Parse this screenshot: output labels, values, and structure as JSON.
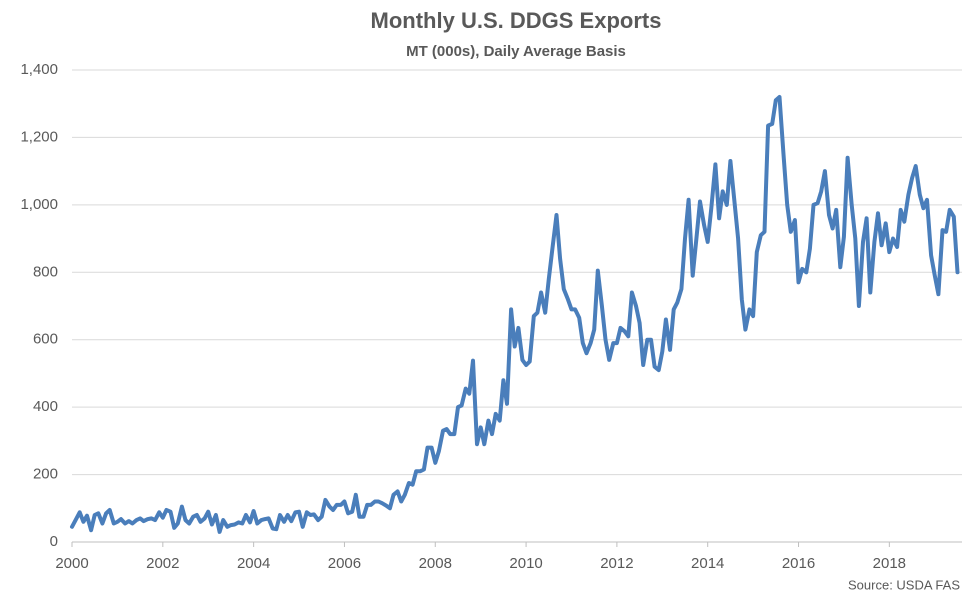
{
  "chart_data": {
    "type": "line",
    "title": "Monthly U.S. DDGS Exports",
    "subtitle": "MT (000s), Daily Average Basis",
    "source": "Source: USDA FAS",
    "color": "#4a7ebb",
    "grid": true,
    "xlim": [
      2000,
      2019.6
    ],
    "xticks": [
      2000,
      2002,
      2004,
      2006,
      2008,
      2010,
      2012,
      2014,
      2016,
      2018
    ],
    "ylim": [
      0,
      1400
    ],
    "yticks": [
      0,
      200,
      400,
      600,
      800,
      {
        "value": 1000,
        "label": "1,000"
      },
      {
        "value": 1200,
        "label": "1,200"
      },
      {
        "value": 1400,
        "label": "1,400"
      }
    ],
    "x": [
      2000,
      2000.08,
      2000.17,
      2000.25,
      2000.33,
      2000.42,
      2000.5,
      2000.58,
      2000.67,
      2000.75,
      2000.83,
      2000.92,
      2001,
      2001.08,
      2001.17,
      2001.25,
      2001.33,
      2001.42,
      2001.5,
      2001.58,
      2001.67,
      2001.75,
      2001.83,
      2001.92,
      2002,
      2002.08,
      2002.17,
      2002.25,
      2002.33,
      2002.42,
      2002.5,
      2002.58,
      2002.67,
      2002.75,
      2002.83,
      2002.92,
      2003,
      2003.08,
      2003.17,
      2003.25,
      2003.33,
      2003.42,
      2003.5,
      2003.58,
      2003.67,
      2003.75,
      2003.83,
      2003.92,
      2004,
      2004.08,
      2004.17,
      2004.25,
      2004.33,
      2004.42,
      2004.5,
      2004.58,
      2004.67,
      2004.75,
      2004.83,
      2004.92,
      2005,
      2005.08,
      2005.17,
      2005.25,
      2005.33,
      2005.42,
      2005.5,
      2005.58,
      2005.67,
      2005.75,
      2005.83,
      2005.92,
      2006,
      2006.08,
      2006.17,
      2006.25,
      2006.33,
      2006.42,
      2006.5,
      2006.58,
      2006.67,
      2006.75,
      2006.83,
      2006.92,
      2007,
      2007.08,
      2007.17,
      2007.25,
      2007.33,
      2007.42,
      2007.5,
      2007.58,
      2007.67,
      2007.75,
      2007.83,
      2007.92,
      2008,
      2008.08,
      2008.17,
      2008.25,
      2008.33,
      2008.42,
      2008.5,
      2008.58,
      2008.67,
      2008.75,
      2008.83,
      2008.92,
      2009,
      2009.08,
      2009.17,
      2009.25,
      2009.33,
      2009.42,
      2009.5,
      2009.58,
      2009.67,
      2009.75,
      2009.83,
      2009.92,
      2010,
      2010.08,
      2010.17,
      2010.25,
      2010.33,
      2010.42,
      2010.5,
      2010.58,
      2010.67,
      2010.75,
      2010.83,
      2010.92,
      2011,
      2011.08,
      2011.17,
      2011.25,
      2011.33,
      2011.42,
      2011.5,
      2011.58,
      2011.67,
      2011.75,
      2011.83,
      2011.92,
      2012,
      2012.08,
      2012.17,
      2012.25,
      2012.33,
      2012.42,
      2012.5,
      2012.58,
      2012.67,
      2012.75,
      2012.83,
      2012.92,
      2013,
      2013.08,
      2013.17,
      2013.25,
      2013.33,
      2013.42,
      2013.5,
      2013.58,
      2013.67,
      2013.75,
      2013.83,
      2013.92,
      2014,
      2014.08,
      2014.17,
      2014.25,
      2014.33,
      2014.42,
      2014.5,
      2014.58,
      2014.67,
      2014.75,
      2014.83,
      2014.92,
      2015,
      2015.08,
      2015.17,
      2015.25,
      2015.33,
      2015.42,
      2015.5,
      2015.58,
      2015.67,
      2015.75,
      2015.83,
      2015.92,
      2016,
      2016.08,
      2016.17,
      2016.25,
      2016.33,
      2016.42,
      2016.5,
      2016.58,
      2016.67,
      2016.75,
      2016.83,
      2016.92,
      2017,
      2017.08,
      2017.17,
      2017.25,
      2017.33,
      2017.42,
      2017.5,
      2017.58,
      2017.67,
      2017.75,
      2017.83,
      2017.92,
      2018,
      2018.08,
      2018.17,
      2018.25,
      2018.33,
      2018.42,
      2018.5,
      2018.58,
      2018.67,
      2018.75,
      2018.83,
      2018.92,
      2019,
      2019.08,
      2019.17,
      2019.25,
      2019.33,
      2019.42,
      2019.5
    ],
    "values": [
      45,
      65,
      88,
      60,
      78,
      35,
      80,
      85,
      55,
      85,
      95,
      55,
      60,
      68,
      55,
      62,
      55,
      65,
      70,
      62,
      68,
      70,
      65,
      88,
      72,
      95,
      90,
      42,
      55,
      105,
      65,
      55,
      75,
      80,
      60,
      70,
      90,
      52,
      80,
      30,
      65,
      45,
      50,
      52,
      58,
      55,
      80,
      58,
      92,
      55,
      65,
      68,
      70,
      40,
      38,
      80,
      60,
      80,
      62,
      88,
      90,
      45,
      88,
      80,
      82,
      65,
      75,
      125,
      105,
      95,
      110,
      110,
      120,
      85,
      90,
      140,
      75,
      75,
      110,
      110,
      120,
      120,
      115,
      108,
      100,
      140,
      150,
      120,
      140,
      175,
      170,
      210,
      210,
      215,
      280,
      280,
      235,
      270,
      330,
      335,
      320,
      320,
      400,
      405,
      455,
      440,
      538,
      290,
      340,
      290,
      360,
      320,
      380,
      360,
      480,
      410,
      690,
      580,
      635,
      540,
      525,
      535,
      670,
      680,
      740,
      680,
      780,
      870,
      970,
      840,
      750,
      720,
      690,
      690,
      665,
      590,
      560,
      590,
      630,
      805,
      700,
      600,
      540,
      590,
      590,
      635,
      625,
      610,
      740,
      700,
      650,
      525,
      600,
      600,
      520,
      510,
      565,
      660,
      570,
      690,
      710,
      750,
      900,
      1015,
      790,
      900,
      1010,
      940,
      890,
      990,
      1120,
      960,
      1040,
      1000,
      1130,
      1020,
      900,
      720,
      630,
      690,
      670,
      860,
      910,
      920,
      1235,
      1240,
      1310,
      1320,
      1150,
      1000,
      920,
      955,
      770,
      810,
      800,
      870,
      1000,
      1005,
      1040,
      1100,
      970,
      930,
      985,
      815,
      905,
      1140,
      1000,
      900,
      700,
      890,
      960,
      740,
      890,
      975,
      880,
      945,
      860,
      900,
      875,
      985,
      950,
      1030,
      1080,
      1115,
      1030,
      990,
      1015,
      850,
      790,
      735,
      925,
      920,
      985,
      965,
      800
    ]
  }
}
